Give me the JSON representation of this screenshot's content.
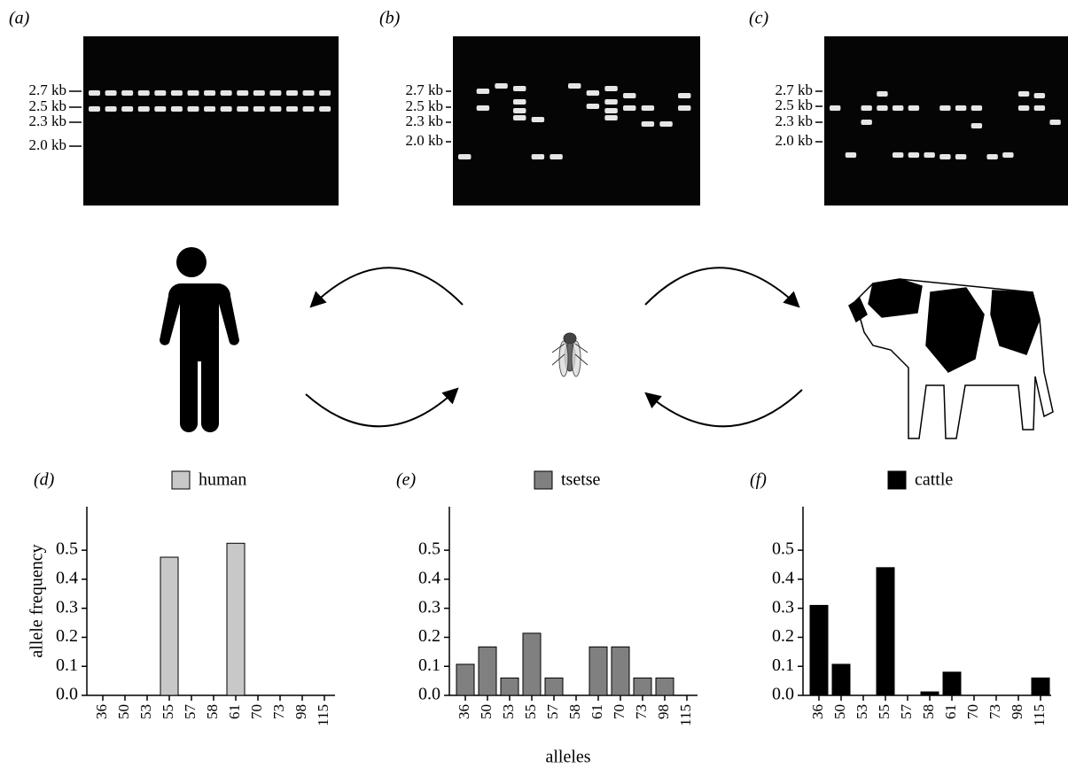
{
  "gels": [
    {
      "label": "(a)",
      "markers": [
        "2.7 kb",
        "2.5 kb",
        "2.3 kb",
        "2.0 kb"
      ]
    },
    {
      "label": "(b)",
      "markers": [
        "2.7 kb",
        "2.5 kb",
        "2.3 kb",
        "2.0 kb"
      ]
    },
    {
      "label": "(c)",
      "markers": [
        "2.7 kb",
        "2.5 kb",
        "2.3 kb",
        "2.0 kb"
      ]
    }
  ],
  "chart_data": [
    {
      "type": "bar",
      "panel": "(d)",
      "ylabel": "allele frequency",
      "categories": [
        "36",
        "50",
        "53",
        "55",
        "57",
        "58",
        "61",
        "70",
        "73",
        "98",
        "115"
      ],
      "series": [
        {
          "name": "human",
          "color": "#c8c8c8",
          "values": [
            0,
            0,
            0,
            0.476,
            0,
            0,
            0.524,
            0,
            0,
            0,
            0
          ]
        }
      ],
      "ylim": [
        0,
        0.65
      ],
      "yticks": [
        {
          "value": 0,
          "label": "0.0"
        },
        0.1,
        0.2,
        0.3,
        0.4,
        0.5
      ]
    },
    {
      "type": "bar",
      "panel": "(e)",
      "xlabel": "alleles",
      "categories": [
        "36",
        "50",
        "53",
        "55",
        "57",
        "58",
        "61",
        "70",
        "73",
        "98",
        "115"
      ],
      "series": [
        {
          "name": "tsetse",
          "color": "#808080",
          "values": [
            0.107,
            0.167,
            0.06,
            0.214,
            0.06,
            0,
            0.167,
            0.167,
            0.06,
            0.06,
            0
          ]
        }
      ],
      "ylim": [
        0,
        0.65
      ],
      "yticks": [
        {
          "value": 0,
          "label": "0.0"
        },
        0.1,
        0.2,
        0.3,
        0.4,
        0.5
      ]
    },
    {
      "type": "bar",
      "panel": "(f)",
      "categories": [
        "36",
        "50",
        "53",
        "55",
        "57",
        "58",
        "61",
        "70",
        "73",
        "98",
        "115"
      ],
      "series": [
        {
          "name": "cattle",
          "color": "#000000",
          "values": [
            0.31,
            0.107,
            0,
            0.44,
            0,
            0.012,
            0.08,
            0,
            0,
            0,
            0.06
          ]
        }
      ],
      "ylim": [
        0,
        0.65
      ],
      "yticks": [
        {
          "value": 0,
          "label": "0.0"
        },
        0.1,
        0.2,
        0.3,
        0.4,
        0.5
      ]
    }
  ]
}
